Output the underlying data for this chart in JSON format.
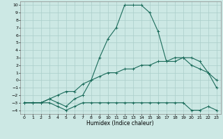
{
  "xlabel": "Humidex (Indice chaleur)",
  "xlim": [
    -0.5,
    23.5
  ],
  "ylim": [
    -4.5,
    10.5
  ],
  "xticks": [
    0,
    1,
    2,
    3,
    4,
    5,
    6,
    7,
    8,
    9,
    10,
    11,
    12,
    13,
    14,
    15,
    16,
    17,
    18,
    19,
    20,
    21,
    22,
    23
  ],
  "yticks": [
    -4,
    -3,
    -2,
    -1,
    0,
    1,
    2,
    3,
    4,
    5,
    6,
    7,
    8,
    9,
    10
  ],
  "bg_color": "#cce8e4",
  "grid_color": "#aaceca",
  "line_color": "#1a6b5a",
  "series1_y": [
    -3,
    -3,
    -3,
    -2.5,
    -3,
    -3.5,
    -2.5,
    -2,
    0,
    3,
    5.5,
    7,
    10,
    10,
    10,
    9,
    6.5,
    2.5,
    3,
    3,
    2,
    1.5,
    1,
    0
  ],
  "series2_y": [
    -3,
    -3,
    -3,
    -2.5,
    -2,
    -1.5,
    -1.5,
    -0.5,
    0,
    0.5,
    1,
    1,
    1.5,
    1.5,
    2,
    2,
    2.5,
    2.5,
    2.5,
    3,
    3,
    2.5,
    1,
    -1
  ],
  "series3_y": [
    -3,
    -3,
    -3,
    -3,
    -3.5,
    -4,
    -3.5,
    -3,
    -3,
    -3,
    -3,
    -3,
    -3,
    -3,
    -3,
    -3,
    -3,
    -3,
    -3,
    -3,
    -4,
    -4,
    -3.5,
    -4
  ]
}
